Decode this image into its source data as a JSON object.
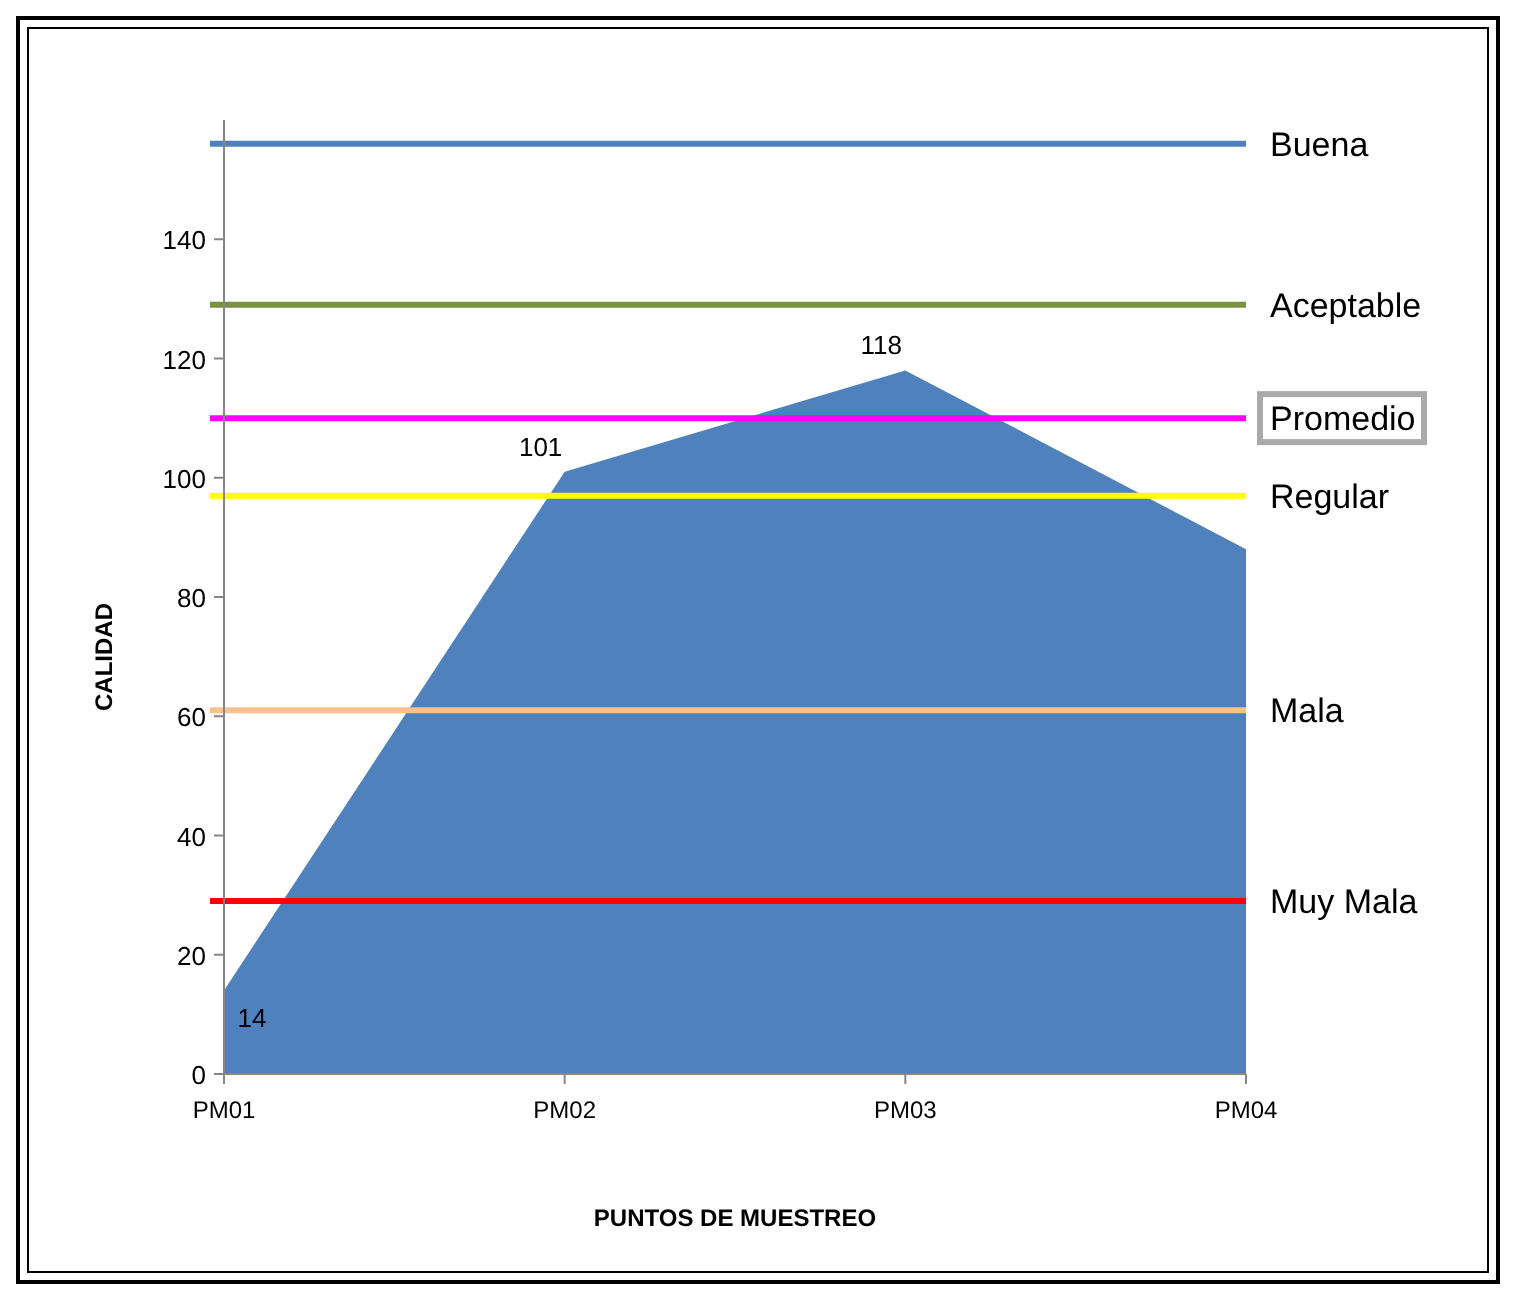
{
  "chart_data": {
    "type": "area",
    "xlabel": "PUNTOS DE MUESTREO",
    "ylabel": "CALIDAD",
    "categories": [
      "PM01",
      "PM02",
      "PM03",
      "PM04"
    ],
    "series": [
      {
        "color": "#4f81bd",
        "values": [
          14,
          101,
          118,
          88
        ],
        "value_labels": [
          "14",
          "101",
          "118",
          null
        ]
      }
    ],
    "ylim": [
      0,
      160
    ],
    "yticks": [
      0,
      20,
      40,
      60,
      80,
      100,
      120,
      140
    ],
    "grid": false,
    "ref_lines": [
      {
        "axis": "y",
        "value": 156,
        "label": "Buena",
        "color": "#4f81bd"
      },
      {
        "axis": "y",
        "value": 129,
        "label": "Aceptable",
        "color": "#77933c"
      },
      {
        "axis": "y",
        "value": 110,
        "label": "Promedio",
        "color": "#ff00ff"
      },
      {
        "axis": "y",
        "value": 97,
        "label": "Regular",
        "color": "#ffff00"
      },
      {
        "axis": "y",
        "value": 61,
        "label": "Mala",
        "color": "#fac090"
      },
      {
        "axis": "y",
        "value": 29,
        "label": "Muy Mala",
        "color": "#ff0000"
      }
    ]
  }
}
